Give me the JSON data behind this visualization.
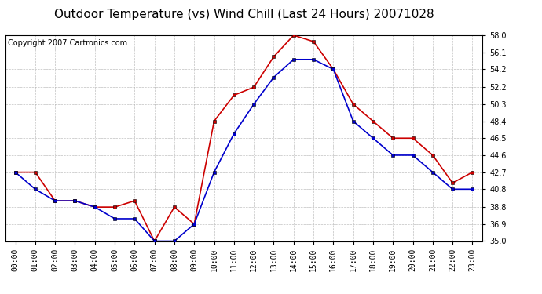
{
  "title": "Outdoor Temperature (vs) Wind Chill (Last 24 Hours) 20071028",
  "copyright": "Copyright 2007 Cartronics.com",
  "hours": [
    "00:00",
    "01:00",
    "02:00",
    "03:00",
    "04:00",
    "05:00",
    "06:00",
    "07:00",
    "08:00",
    "09:00",
    "10:00",
    "11:00",
    "12:00",
    "13:00",
    "14:00",
    "15:00",
    "16:00",
    "17:00",
    "18:00",
    "19:00",
    "20:00",
    "21:00",
    "22:00",
    "23:00"
  ],
  "temp": [
    42.7,
    42.7,
    39.5,
    39.5,
    38.8,
    38.8,
    39.5,
    35.0,
    38.8,
    36.9,
    48.4,
    51.3,
    52.2,
    55.6,
    58.0,
    57.3,
    54.2,
    50.3,
    48.4,
    46.5,
    46.5,
    44.6,
    41.5,
    42.7
  ],
  "windchill": [
    42.7,
    40.8,
    39.5,
    39.5,
    38.8,
    37.5,
    37.5,
    35.0,
    35.0,
    36.9,
    42.7,
    47.0,
    50.3,
    53.3,
    55.3,
    55.3,
    54.2,
    48.4,
    46.5,
    44.6,
    44.6,
    42.7,
    40.8,
    40.8
  ],
  "temp_color": "#cc0000",
  "windchill_color": "#0000cc",
  "background_color": "#ffffff",
  "plot_bg_color": "#ffffff",
  "grid_color": "#b0b0b0",
  "ylim": [
    35.0,
    58.0
  ],
  "yticks": [
    35.0,
    36.9,
    38.8,
    40.8,
    42.7,
    44.6,
    46.5,
    48.4,
    50.3,
    52.2,
    54.2,
    56.1,
    58.0
  ],
  "title_fontsize": 11,
  "copyright_fontsize": 7,
  "tick_fontsize": 7,
  "markersize": 3,
  "linewidth": 1.2
}
